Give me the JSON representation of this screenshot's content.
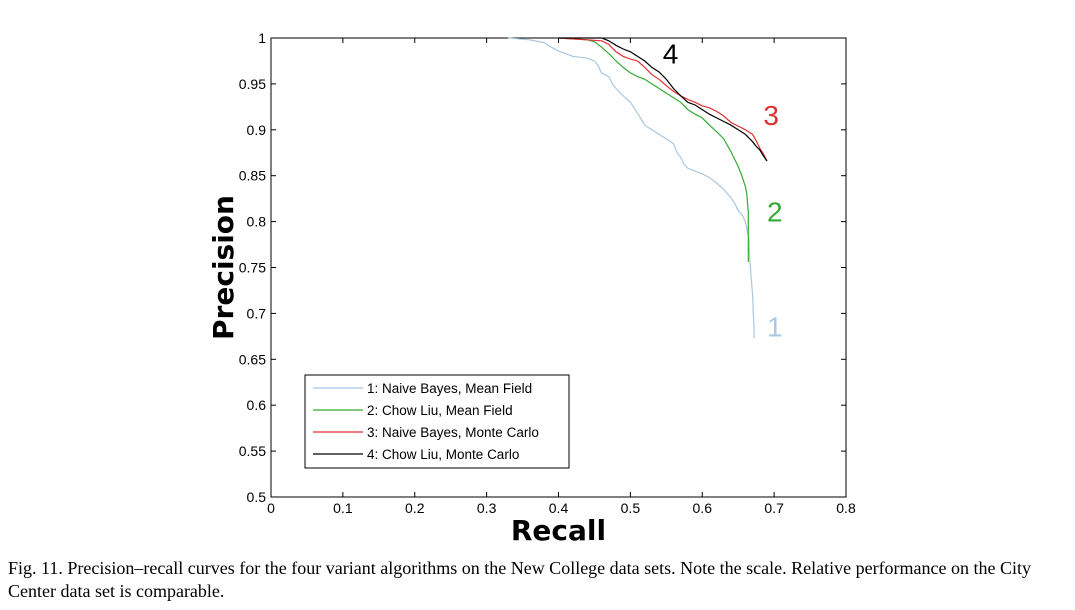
{
  "chart_data": {
    "type": "line",
    "xlabel": "Recall",
    "ylabel": "Precision",
    "xlim": [
      0,
      0.8
    ],
    "ylim": [
      0.5,
      1
    ],
    "x_ticks": [
      "0",
      "0.1",
      "0.2",
      "0.3",
      "0.4",
      "0.5",
      "0.6",
      "0.7",
      "0.8"
    ],
    "y_ticks": [
      "0.5",
      "0.55",
      "0.6",
      "0.65",
      "0.7",
      "0.75",
      "0.8",
      "0.85",
      "0.9",
      "0.95",
      "1"
    ],
    "legend_position": "bottom-left",
    "grid": false,
    "series": [
      {
        "name": "1: Naive Bayes, Mean Field",
        "label": "1",
        "color": "#a8c8e0",
        "points": [
          [
            0.33,
            1.0
          ],
          [
            0.36,
            0.998
          ],
          [
            0.38,
            0.995
          ],
          [
            0.39,
            0.99
          ],
          [
            0.4,
            0.986
          ],
          [
            0.41,
            0.983
          ],
          [
            0.42,
            0.98
          ],
          [
            0.43,
            0.979
          ],
          [
            0.44,
            0.978
          ],
          [
            0.45,
            0.975
          ],
          [
            0.455,
            0.97
          ],
          [
            0.46,
            0.962
          ],
          [
            0.47,
            0.958
          ],
          [
            0.475,
            0.95
          ],
          [
            0.48,
            0.945
          ],
          [
            0.49,
            0.937
          ],
          [
            0.5,
            0.93
          ],
          [
            0.51,
            0.918
          ],
          [
            0.52,
            0.905
          ],
          [
            0.53,
            0.9
          ],
          [
            0.54,
            0.895
          ],
          [
            0.55,
            0.89
          ],
          [
            0.56,
            0.885
          ],
          [
            0.565,
            0.875
          ],
          [
            0.57,
            0.87
          ],
          [
            0.575,
            0.862
          ],
          [
            0.58,
            0.858
          ],
          [
            0.59,
            0.855
          ],
          [
            0.6,
            0.852
          ],
          [
            0.61,
            0.848
          ],
          [
            0.62,
            0.842
          ],
          [
            0.63,
            0.835
          ],
          [
            0.64,
            0.826
          ],
          [
            0.645,
            0.82
          ],
          [
            0.65,
            0.812
          ],
          [
            0.655,
            0.808
          ],
          [
            0.66,
            0.8
          ],
          [
            0.665,
            0.78
          ],
          [
            0.666,
            0.76
          ],
          [
            0.668,
            0.74
          ],
          [
            0.67,
            0.72
          ],
          [
            0.671,
            0.7
          ],
          [
            0.672,
            0.685
          ],
          [
            0.672,
            0.673
          ]
        ]
      },
      {
        "name": "2: Chow Liu, Mean Field",
        "label": "2",
        "color": "#33aa33",
        "points": [
          [
            0.4,
            1.0
          ],
          [
            0.42,
            0.999
          ],
          [
            0.44,
            0.998
          ],
          [
            0.45,
            0.996
          ],
          [
            0.46,
            0.99
          ],
          [
            0.47,
            0.983
          ],
          [
            0.48,
            0.975
          ],
          [
            0.49,
            0.968
          ],
          [
            0.5,
            0.962
          ],
          [
            0.51,
            0.958
          ],
          [
            0.52,
            0.955
          ],
          [
            0.53,
            0.95
          ],
          [
            0.54,
            0.945
          ],
          [
            0.55,
            0.94
          ],
          [
            0.56,
            0.935
          ],
          [
            0.57,
            0.93
          ],
          [
            0.58,
            0.922
          ],
          [
            0.59,
            0.917
          ],
          [
            0.6,
            0.913
          ],
          [
            0.61,
            0.905
          ],
          [
            0.62,
            0.898
          ],
          [
            0.63,
            0.89
          ],
          [
            0.64,
            0.876
          ],
          [
            0.645,
            0.868
          ],
          [
            0.65,
            0.86
          ],
          [
            0.655,
            0.85
          ],
          [
            0.66,
            0.838
          ],
          [
            0.662,
            0.83
          ],
          [
            0.664,
            0.81
          ],
          [
            0.664,
            0.79
          ],
          [
            0.664,
            0.77
          ],
          [
            0.664,
            0.756
          ]
        ]
      },
      {
        "name": "3: Naive Bayes, Monte Carlo",
        "label": "3",
        "color": "#e03030",
        "points": [
          [
            0.4,
            1.0
          ],
          [
            0.42,
            0.999
          ],
          [
            0.44,
            0.998
          ],
          [
            0.46,
            0.997
          ],
          [
            0.47,
            0.993
          ],
          [
            0.48,
            0.985
          ],
          [
            0.49,
            0.98
          ],
          [
            0.5,
            0.977
          ],
          [
            0.51,
            0.975
          ],
          [
            0.52,
            0.968
          ],
          [
            0.53,
            0.96
          ],
          [
            0.54,
            0.955
          ],
          [
            0.55,
            0.948
          ],
          [
            0.56,
            0.942
          ],
          [
            0.57,
            0.937
          ],
          [
            0.58,
            0.933
          ],
          [
            0.59,
            0.93
          ],
          [
            0.6,
            0.926
          ],
          [
            0.61,
            0.924
          ],
          [
            0.62,
            0.92
          ],
          [
            0.63,
            0.915
          ],
          [
            0.64,
            0.908
          ],
          [
            0.65,
            0.904
          ],
          [
            0.66,
            0.9
          ],
          [
            0.67,
            0.895
          ],
          [
            0.675,
            0.888
          ],
          [
            0.68,
            0.88
          ],
          [
            0.685,
            0.874
          ],
          [
            0.69,
            0.866
          ]
        ]
      },
      {
        "name": "4: Chow Liu, Monte Carlo",
        "label": "4",
        "color": "#000000",
        "points": [
          [
            0.4,
            1.0
          ],
          [
            0.42,
            1.0
          ],
          [
            0.44,
            1.0
          ],
          [
            0.46,
            1.0
          ],
          [
            0.47,
            0.997
          ],
          [
            0.48,
            0.992
          ],
          [
            0.49,
            0.988
          ],
          [
            0.5,
            0.985
          ],
          [
            0.51,
            0.98
          ],
          [
            0.52,
            0.975
          ],
          [
            0.53,
            0.968
          ],
          [
            0.54,
            0.963
          ],
          [
            0.55,
            0.955
          ],
          [
            0.56,
            0.945
          ],
          [
            0.57,
            0.937
          ],
          [
            0.58,
            0.93
          ],
          [
            0.59,
            0.927
          ],
          [
            0.6,
            0.922
          ],
          [
            0.61,
            0.917
          ],
          [
            0.62,
            0.913
          ],
          [
            0.63,
            0.909
          ],
          [
            0.64,
            0.905
          ],
          [
            0.65,
            0.9
          ],
          [
            0.66,
            0.895
          ],
          [
            0.67,
            0.887
          ],
          [
            0.675,
            0.882
          ],
          [
            0.68,
            0.878
          ],
          [
            0.685,
            0.872
          ],
          [
            0.69,
            0.866
          ]
        ]
      }
    ],
    "curve_labels": [
      {
        "text": "1",
        "color": "#a8c8e0",
        "x": 0.69,
        "y": 0.675
      },
      {
        "text": "2",
        "color": "#33aa33",
        "x": 0.69,
        "y": 0.8
      },
      {
        "text": "3",
        "color": "#e03030",
        "x": 0.685,
        "y": 0.905
      },
      {
        "text": "4",
        "color": "#000000",
        "x": 0.545,
        "y": 0.972
      }
    ]
  },
  "caption": "Fig. 11. Precision–recall curves for the four variant algorithms on the New College data sets. Note the scale. Relative performance on the City Center data set is comparable."
}
